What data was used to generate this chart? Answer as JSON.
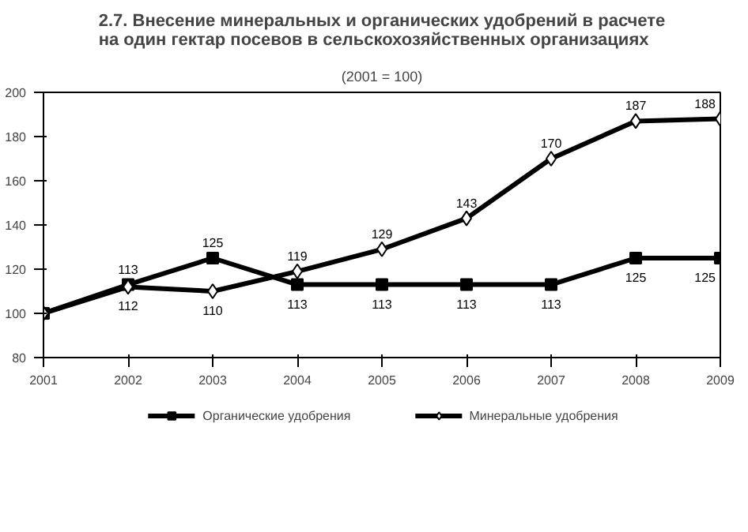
{
  "chart_data": {
    "type": "line",
    "title": "2.7. Внесение минеральных и органических удобрений в расчете\nна один гектар посевов в сельскохозяйственных организациях",
    "subtitle": "(2001 = 100)",
    "x": [
      2001,
      2002,
      2003,
      2004,
      2005,
      2006,
      2007,
      2008,
      2009
    ],
    "xlim": [
      2001,
      2009
    ],
    "xticks": [
      2001,
      2002,
      2003,
      2004,
      2005,
      2006,
      2007,
      2008,
      2009
    ],
    "ylim": [
      80,
      200
    ],
    "yticks": [
      80,
      100,
      120,
      140,
      160,
      180,
      200
    ],
    "grid": false,
    "legend": "bottom",
    "line_style": "solid",
    "series": [
      {
        "name": "Органические удобрения",
        "color": "#000000",
        "marker": "square",
        "values": [
          100,
          113,
          125,
          113,
          113,
          113,
          113,
          125,
          125
        ],
        "value_labels": [
          null,
          "113",
          "125",
          "113",
          "113",
          "113",
          "113",
          "125",
          "125"
        ]
      },
      {
        "name": "Минеральные удобрения",
        "color": "#000000",
        "marker": "diamond",
        "values": [
          100,
          112,
          110,
          119,
          129,
          143,
          170,
          187,
          188
        ],
        "value_labels": [
          null,
          "112",
          "110",
          "119",
          "129",
          "143",
          "170",
          "187",
          "188"
        ]
      }
    ]
  }
}
